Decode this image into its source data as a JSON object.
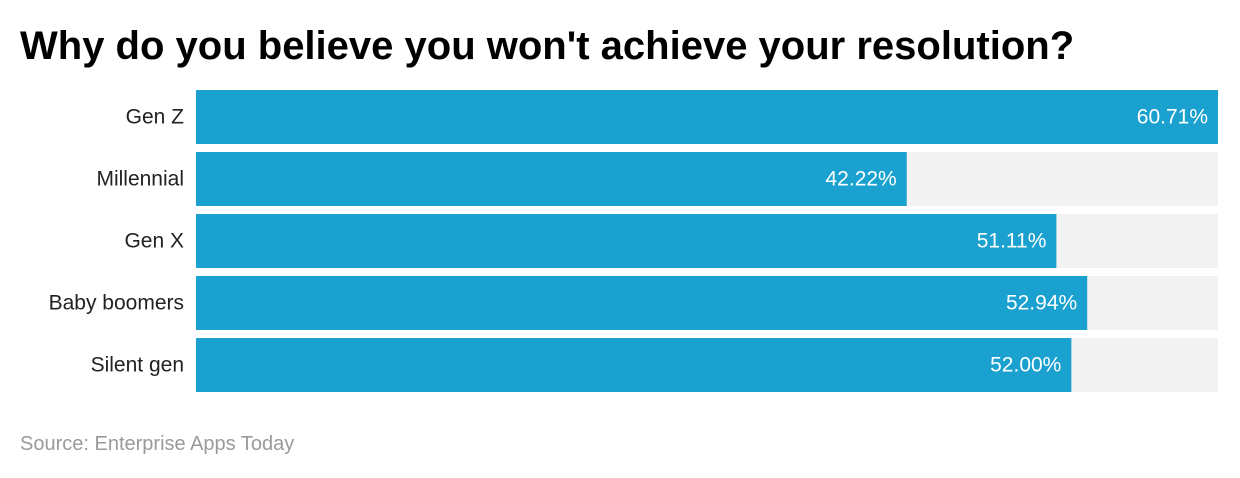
{
  "title": "Why do you believe you won't achieve your resolution?",
  "source": "Source: Enterprise Apps Today",
  "colors": {
    "bar": "#1ba1cf",
    "track": "#f2f2f2",
    "category_label": "#222222",
    "value_label": "#ffffff"
  },
  "chart_data": {
    "type": "bar",
    "orientation": "horizontal",
    "categories": [
      "Gen Z",
      "Millennial",
      "Gen X",
      "Baby boomers",
      "Silent gen"
    ],
    "values": [
      60.71,
      42.22,
      51.11,
      52.94,
      52.0
    ],
    "value_labels": [
      "60.71%",
      "42.22%",
      "51.11%",
      "52.94%",
      "52.00%"
    ],
    "xlim": [
      0,
      60.71
    ],
    "grid": false,
    "legend": "none"
  }
}
